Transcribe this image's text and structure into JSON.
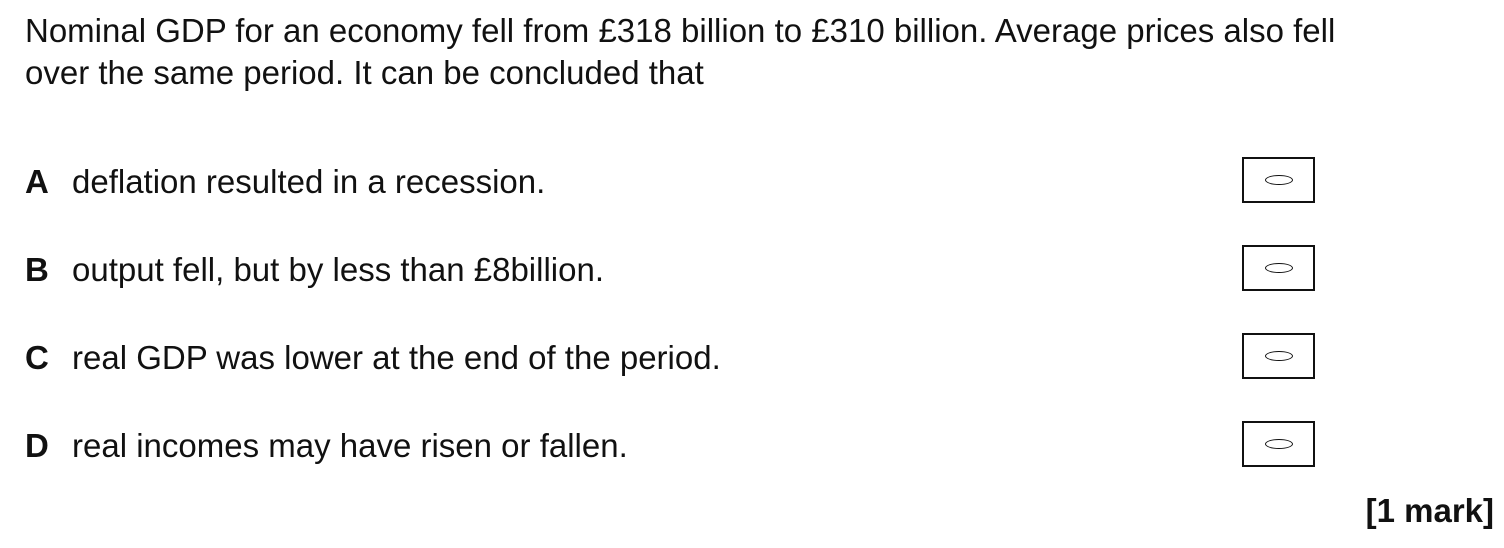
{
  "question": {
    "line1": "Nominal GDP for an economy fell from £318 billion to £310 billion.  Average prices also fell",
    "line2": "over the same period.  It can be concluded that"
  },
  "options": [
    {
      "letter": "A",
      "text": "deflation resulted in a recession."
    },
    {
      "letter": "B",
      "text": "output fell, but by less than £8billion."
    },
    {
      "letter": "C",
      "text": "real GDP was lower at the end of the period."
    },
    {
      "letter": "D",
      "text": "real incomes may have risen or fallen."
    }
  ],
  "marks_label": "[1 mark]"
}
